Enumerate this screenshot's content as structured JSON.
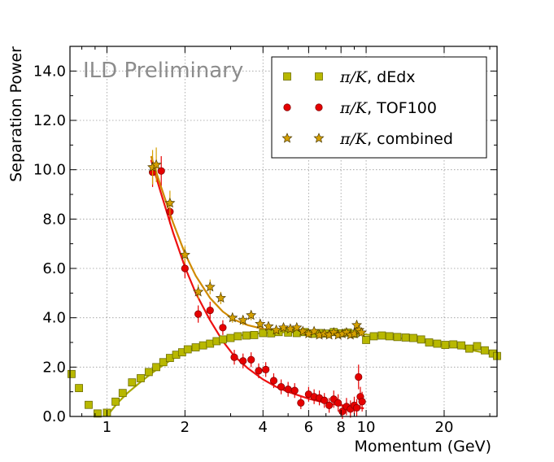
{
  "chart_data": {
    "type": "scatter",
    "title": "",
    "watermark": "ILD Preliminary",
    "xlabel": "Momentum (GeV)",
    "ylabel": "Separation Power",
    "xscale": "log",
    "xlim": [
      0.72,
      32
    ],
    "ylim": [
      0,
      15
    ],
    "x_ticks": [
      1,
      2,
      4,
      6,
      8,
      10,
      20
    ],
    "x_tick_labels": [
      "1",
      "2",
      "4",
      "6",
      "8",
      "10",
      "20"
    ],
    "y_ticks": [
      0,
      2,
      4,
      6,
      8,
      10,
      12,
      14
    ],
    "y_tick_labels": [
      "0.0",
      "2.0",
      "4.0",
      "6.0",
      "8.0",
      "10.0",
      "12.0",
      "14.0"
    ],
    "grid": true,
    "legend_position": "top-right",
    "colors": {
      "dedx": "#b8b800",
      "dedx_edge": "#6e6e00",
      "tof": "#e60000",
      "tof_edge": "#8a0000",
      "combined": "#d4a000",
      "combined_edge": "#4a3800",
      "tof_fit": "#ee1111",
      "combined_fit": "#d08a00",
      "dedx_fit": "#a8a800"
    },
    "series": [
      {
        "name": "dEdx",
        "legend_math": "π/K",
        "legend_label": ", dEdx",
        "marker": "square",
        "x": [
          0.73,
          0.78,
          0.85,
          0.92,
          1.0,
          1.08,
          1.15,
          1.25,
          1.35,
          1.45,
          1.55,
          1.65,
          1.75,
          1.85,
          1.95,
          2.05,
          2.2,
          2.35,
          2.5,
          2.65,
          2.8,
          3.0,
          3.2,
          3.45,
          3.7,
          4.0,
          4.3,
          4.6,
          5.0,
          5.4,
          5.8,
          6.2,
          6.6,
          7.0,
          7.5,
          8.0,
          8.5,
          9.0,
          10.0,
          10.7,
          11.5,
          12.3,
          13.2,
          14.2,
          15.2,
          16.3,
          17.5,
          18.8,
          20.2,
          21.7,
          23.3,
          25.0,
          26.8,
          28.7,
          30.8,
          32.0
        ],
        "y": [
          1.72,
          1.15,
          0.47,
          0.12,
          0.15,
          0.6,
          0.95,
          1.38,
          1.55,
          1.8,
          2.0,
          2.2,
          2.37,
          2.5,
          2.6,
          2.72,
          2.8,
          2.88,
          2.95,
          3.05,
          3.12,
          3.18,
          3.25,
          3.28,
          3.3,
          3.38,
          3.37,
          3.42,
          3.4,
          3.38,
          3.42,
          3.35,
          3.38,
          3.36,
          3.42,
          3.37,
          3.4,
          3.35,
          3.1,
          3.25,
          3.28,
          3.25,
          3.22,
          3.2,
          3.18,
          3.12,
          3.0,
          2.95,
          2.9,
          2.92,
          2.88,
          2.75,
          2.85,
          2.68,
          2.55,
          2.45
        ]
      },
      {
        "name": "TOF100",
        "legend_math": "π/K",
        "legend_label": ", TOF100",
        "marker": "circle",
        "x": [
          1.5,
          1.62,
          1.75,
          2.0,
          2.25,
          2.5,
          2.8,
          3.1,
          3.35,
          3.6,
          3.85,
          4.1,
          4.4,
          4.7,
          5.0,
          5.3,
          5.6,
          6.0,
          6.3,
          6.6,
          6.9,
          7.2,
          7.5,
          7.8,
          8.1,
          8.4,
          8.7,
          9.0,
          9.2,
          9.35,
          9.5,
          9.65
        ],
        "y": [
          9.9,
          9.95,
          8.3,
          6.0,
          4.15,
          4.3,
          3.6,
          2.4,
          2.25,
          2.3,
          1.85,
          1.9,
          1.45,
          1.2,
          1.1,
          1.05,
          0.55,
          0.9,
          0.8,
          0.75,
          0.65,
          0.45,
          0.7,
          0.55,
          0.2,
          0.4,
          0.3,
          0.45,
          0.35,
          1.6,
          0.8,
          0.6
        ],
        "yerr": [
          0.6,
          0.6,
          0.5,
          0.4,
          0.35,
          0.35,
          0.3,
          0.3,
          0.3,
          0.3,
          0.3,
          0.3,
          0.3,
          0.3,
          0.3,
          0.3,
          0.25,
          0.3,
          0.3,
          0.3,
          0.3,
          0.3,
          0.35,
          0.35,
          0.3,
          0.35,
          0.35,
          0.35,
          0.35,
          0.5,
          0.4,
          0.4
        ]
      },
      {
        "name": "combined",
        "legend_math": "π/K",
        "legend_label": ", combined",
        "marker": "star",
        "x": [
          1.5,
          1.55,
          1.75,
          2.0,
          2.25,
          2.5,
          2.75,
          3.05,
          3.35,
          3.6,
          3.9,
          4.2,
          4.5,
          4.8,
          5.1,
          5.4,
          5.7,
          6.0,
          6.3,
          6.6,
          6.9,
          7.2,
          7.5,
          7.8,
          8.1,
          8.4,
          8.7,
          9.0,
          9.2,
          9.4,
          9.6
        ],
        "y": [
          10.1,
          10.2,
          8.65,
          6.55,
          5.05,
          5.25,
          4.8,
          4.0,
          3.9,
          4.1,
          3.75,
          3.65,
          3.5,
          3.6,
          3.55,
          3.6,
          3.45,
          3.35,
          3.45,
          3.3,
          3.35,
          3.3,
          3.4,
          3.3,
          3.35,
          3.4,
          3.3,
          3.35,
          3.7,
          3.5,
          3.4
        ],
        "yerr": [
          0.7,
          0.7,
          0.5,
          0.35,
          0.3,
          0.3,
          0.25,
          0.2,
          0.2,
          0.2,
          0.15,
          0.15,
          0.15,
          0.15,
          0.12,
          0.12,
          0.12,
          0.12,
          0.12,
          0.12,
          0.12,
          0.12,
          0.12,
          0.12,
          0.12,
          0.12,
          0.12,
          0.12,
          0.2,
          0.15,
          0.15
        ]
      }
    ],
    "fits": [
      {
        "name": "TOF100 fit",
        "x": [
          1.48,
          1.6,
          1.8,
          2.0,
          2.2,
          2.5,
          2.8,
          3.1,
          3.5,
          4.0,
          4.5,
          5.0,
          5.5,
          6.0,
          7.0,
          8.0,
          9.0,
          9.8
        ],
        "y": [
          10.4,
          9.2,
          7.45,
          6.05,
          5.0,
          3.9,
          3.05,
          2.45,
          1.95,
          1.5,
          1.2,
          1.0,
          0.85,
          0.72,
          0.55,
          0.45,
          0.38,
          0.33
        ]
      },
      {
        "name": "combined fit",
        "x": [
          1.48,
          1.6,
          1.8,
          2.0,
          2.2,
          2.5,
          2.8,
          3.1,
          3.5,
          4.0,
          4.5,
          5.0,
          5.5,
          6.0,
          7.0,
          8.0,
          9.0,
          9.8
        ],
        "y": [
          10.55,
          9.45,
          7.85,
          6.6,
          5.7,
          4.8,
          4.25,
          3.92,
          3.7,
          3.55,
          3.48,
          3.44,
          3.42,
          3.4,
          3.38,
          3.36,
          3.35,
          3.34
        ]
      },
      {
        "name": "dEdx fit",
        "x": [
          1.0,
          1.1,
          1.2,
          1.35,
          1.5,
          1.7,
          1.9,
          2.2,
          2.5,
          3.0,
          3.5,
          4.0,
          5.0,
          6.0,
          8.0,
          10.0,
          13.0,
          17.0,
          22.0,
          28.0,
          32.0
        ],
        "y": [
          0.02,
          0.55,
          0.95,
          1.4,
          1.78,
          2.18,
          2.5,
          2.82,
          3.02,
          3.22,
          3.33,
          3.38,
          3.42,
          3.42,
          3.38,
          3.32,
          3.2,
          3.02,
          2.82,
          2.6,
          2.48
        ]
      }
    ]
  }
}
